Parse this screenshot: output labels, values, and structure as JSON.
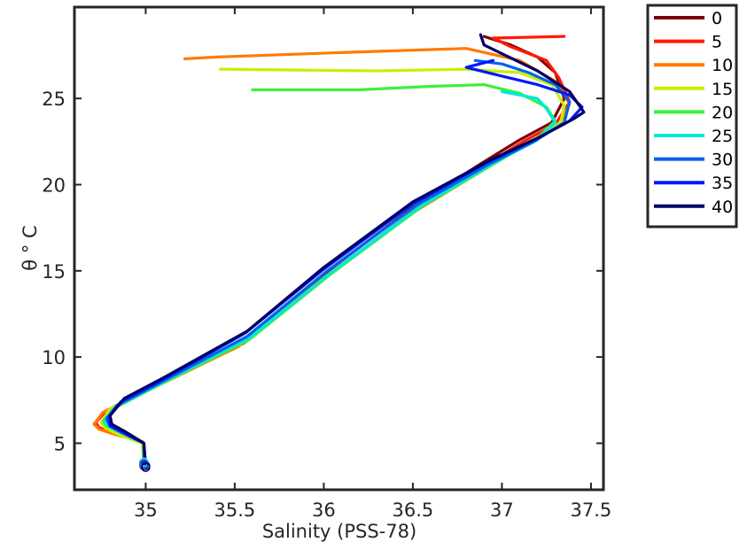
{
  "chart_data": {
    "type": "line",
    "title": "",
    "xlabel": "Salinity (PSS-78)",
    "ylabel": "θ ° C",
    "xlim": [
      34.6,
      37.57
    ],
    "ylim": [
      2.3,
      30.3
    ],
    "xticks": [
      35,
      35.5,
      36,
      36.5,
      37,
      37.5
    ],
    "yticks": [
      5,
      10,
      15,
      20,
      25
    ],
    "grid": false,
    "legend": {
      "position": "outside-top-right",
      "entries": [
        "0",
        "5",
        "10",
        "15",
        "20",
        "25",
        "30",
        "35",
        "40"
      ]
    },
    "colors": [
      "#7f0000",
      "#ff1a00",
      "#ff7a00",
      "#c8f000",
      "#3cf03c",
      "#00e8e0",
      "#0064e6",
      "#0018ff",
      "#000064"
    ],
    "series": [
      {
        "name": "0",
        "x": [
          34.99,
          34.99,
          34.86,
          34.78,
          34.76,
          34.8,
          35.02,
          35.55,
          36.0,
          36.5,
          36.88,
          37.1,
          37.28,
          37.35,
          37.3,
          37.2,
          37.05,
          36.9
        ],
        "y": [
          3.7,
          5.0,
          5.5,
          5.9,
          6.3,
          7.0,
          8.2,
          11.0,
          14.8,
          18.7,
          21.2,
          22.6,
          23.6,
          25.0,
          26.5,
          27.4,
          28.1,
          28.6
        ]
      },
      {
        "name": "5",
        "x": [
          34.99,
          34.98,
          34.84,
          34.74,
          34.72,
          34.78,
          35.0,
          35.55,
          36.02,
          36.52,
          36.9,
          37.12,
          37.3,
          37.38,
          37.32,
          37.25,
          37.05,
          36.95,
          37.35
        ],
        "y": [
          3.8,
          5.1,
          5.5,
          5.9,
          6.2,
          6.9,
          8.0,
          10.8,
          14.7,
          18.6,
          21.1,
          22.5,
          23.5,
          24.8,
          26.2,
          27.2,
          28.0,
          28.5,
          28.6
        ]
      },
      {
        "name": "10",
        "x": [
          34.99,
          34.98,
          34.83,
          34.74,
          34.71,
          34.76,
          34.98,
          35.52,
          36.0,
          36.52,
          36.92,
          37.15,
          37.32,
          37.38,
          37.3,
          37.1,
          36.8,
          36.2,
          35.4,
          35.22
        ],
        "y": [
          3.8,
          5.1,
          5.5,
          5.8,
          6.1,
          6.8,
          7.9,
          10.6,
          14.6,
          18.5,
          21.0,
          22.4,
          23.4,
          24.7,
          26.0,
          27.2,
          27.9,
          27.7,
          27.4,
          27.3
        ]
      },
      {
        "name": "15",
        "x": [
          34.99,
          34.98,
          34.85,
          34.77,
          34.75,
          34.8,
          35.02,
          35.56,
          36.03,
          36.54,
          36.95,
          37.18,
          37.33,
          37.35,
          37.28,
          37.1,
          36.8,
          36.3,
          35.8,
          35.42
        ],
        "y": [
          3.8,
          5.0,
          5.5,
          5.9,
          6.2,
          7.0,
          8.1,
          10.9,
          14.8,
          18.7,
          21.2,
          22.6,
          23.6,
          24.6,
          25.8,
          26.5,
          26.7,
          26.6,
          26.65,
          26.7
        ]
      },
      {
        "name": "20",
        "x": [
          34.99,
          34.99,
          34.86,
          34.78,
          34.76,
          34.82,
          35.04,
          35.58,
          36.05,
          36.56,
          36.97,
          37.2,
          37.3,
          37.25,
          37.1,
          36.9,
          36.6,
          36.2,
          35.9,
          35.6
        ],
        "y": [
          3.9,
          5.0,
          5.6,
          6.0,
          6.3,
          7.0,
          8.2,
          11.0,
          14.9,
          18.8,
          21.3,
          22.7,
          23.7,
          24.5,
          25.3,
          25.8,
          25.7,
          25.5,
          25.5,
          25.5
        ]
      },
      {
        "name": "25",
        "x": [
          34.99,
          34.99,
          34.87,
          34.79,
          34.77,
          34.83,
          35.05,
          35.58,
          36.04,
          36.55,
          36.96,
          37.2,
          37.3,
          37.25,
          37.2,
          37.0
        ],
        "y": [
          3.9,
          5.0,
          5.6,
          6.0,
          6.3,
          7.1,
          8.3,
          11.1,
          14.9,
          18.8,
          21.3,
          22.6,
          23.6,
          24.4,
          25.0,
          25.4
        ]
      },
      {
        "name": "30",
        "x": [
          34.99,
          34.99,
          34.87,
          34.8,
          34.78,
          34.84,
          35.06,
          35.57,
          36.02,
          36.52,
          36.93,
          37.18,
          37.35,
          37.38,
          37.3,
          37.15,
          37.0,
          36.85
        ],
        "y": [
          3.8,
          5.0,
          5.6,
          6.0,
          6.4,
          7.2,
          8.4,
          11.2,
          15.0,
          18.8,
          21.2,
          22.5,
          23.6,
          24.8,
          25.8,
          26.5,
          27.0,
          27.2
        ]
      },
      {
        "name": "35",
        "x": [
          35.0,
          34.99,
          34.88,
          34.8,
          34.79,
          34.86,
          35.08,
          35.56,
          36.0,
          36.5,
          36.92,
          37.2,
          37.38,
          37.45,
          37.38,
          37.2,
          37.0,
          36.8,
          36.95
        ],
        "y": [
          3.7,
          5.0,
          5.6,
          6.0,
          6.5,
          7.4,
          8.6,
          11.4,
          15.1,
          18.9,
          21.3,
          22.7,
          23.7,
          24.5,
          25.2,
          25.8,
          26.3,
          26.8,
          27.2
        ]
      },
      {
        "name": "40",
        "x": [
          35.0,
          34.99,
          34.88,
          34.81,
          34.8,
          34.88,
          35.1,
          35.57,
          36.0,
          36.5,
          36.93,
          37.22,
          37.4,
          37.46,
          37.38,
          37.2,
          37.0,
          36.9,
          36.88
        ],
        "y": [
          3.6,
          5.0,
          5.7,
          6.1,
          6.6,
          7.6,
          8.8,
          11.5,
          15.2,
          19.0,
          21.4,
          22.8,
          23.8,
          24.2,
          25.4,
          26.6,
          27.6,
          28.1,
          28.7
        ]
      }
    ]
  }
}
